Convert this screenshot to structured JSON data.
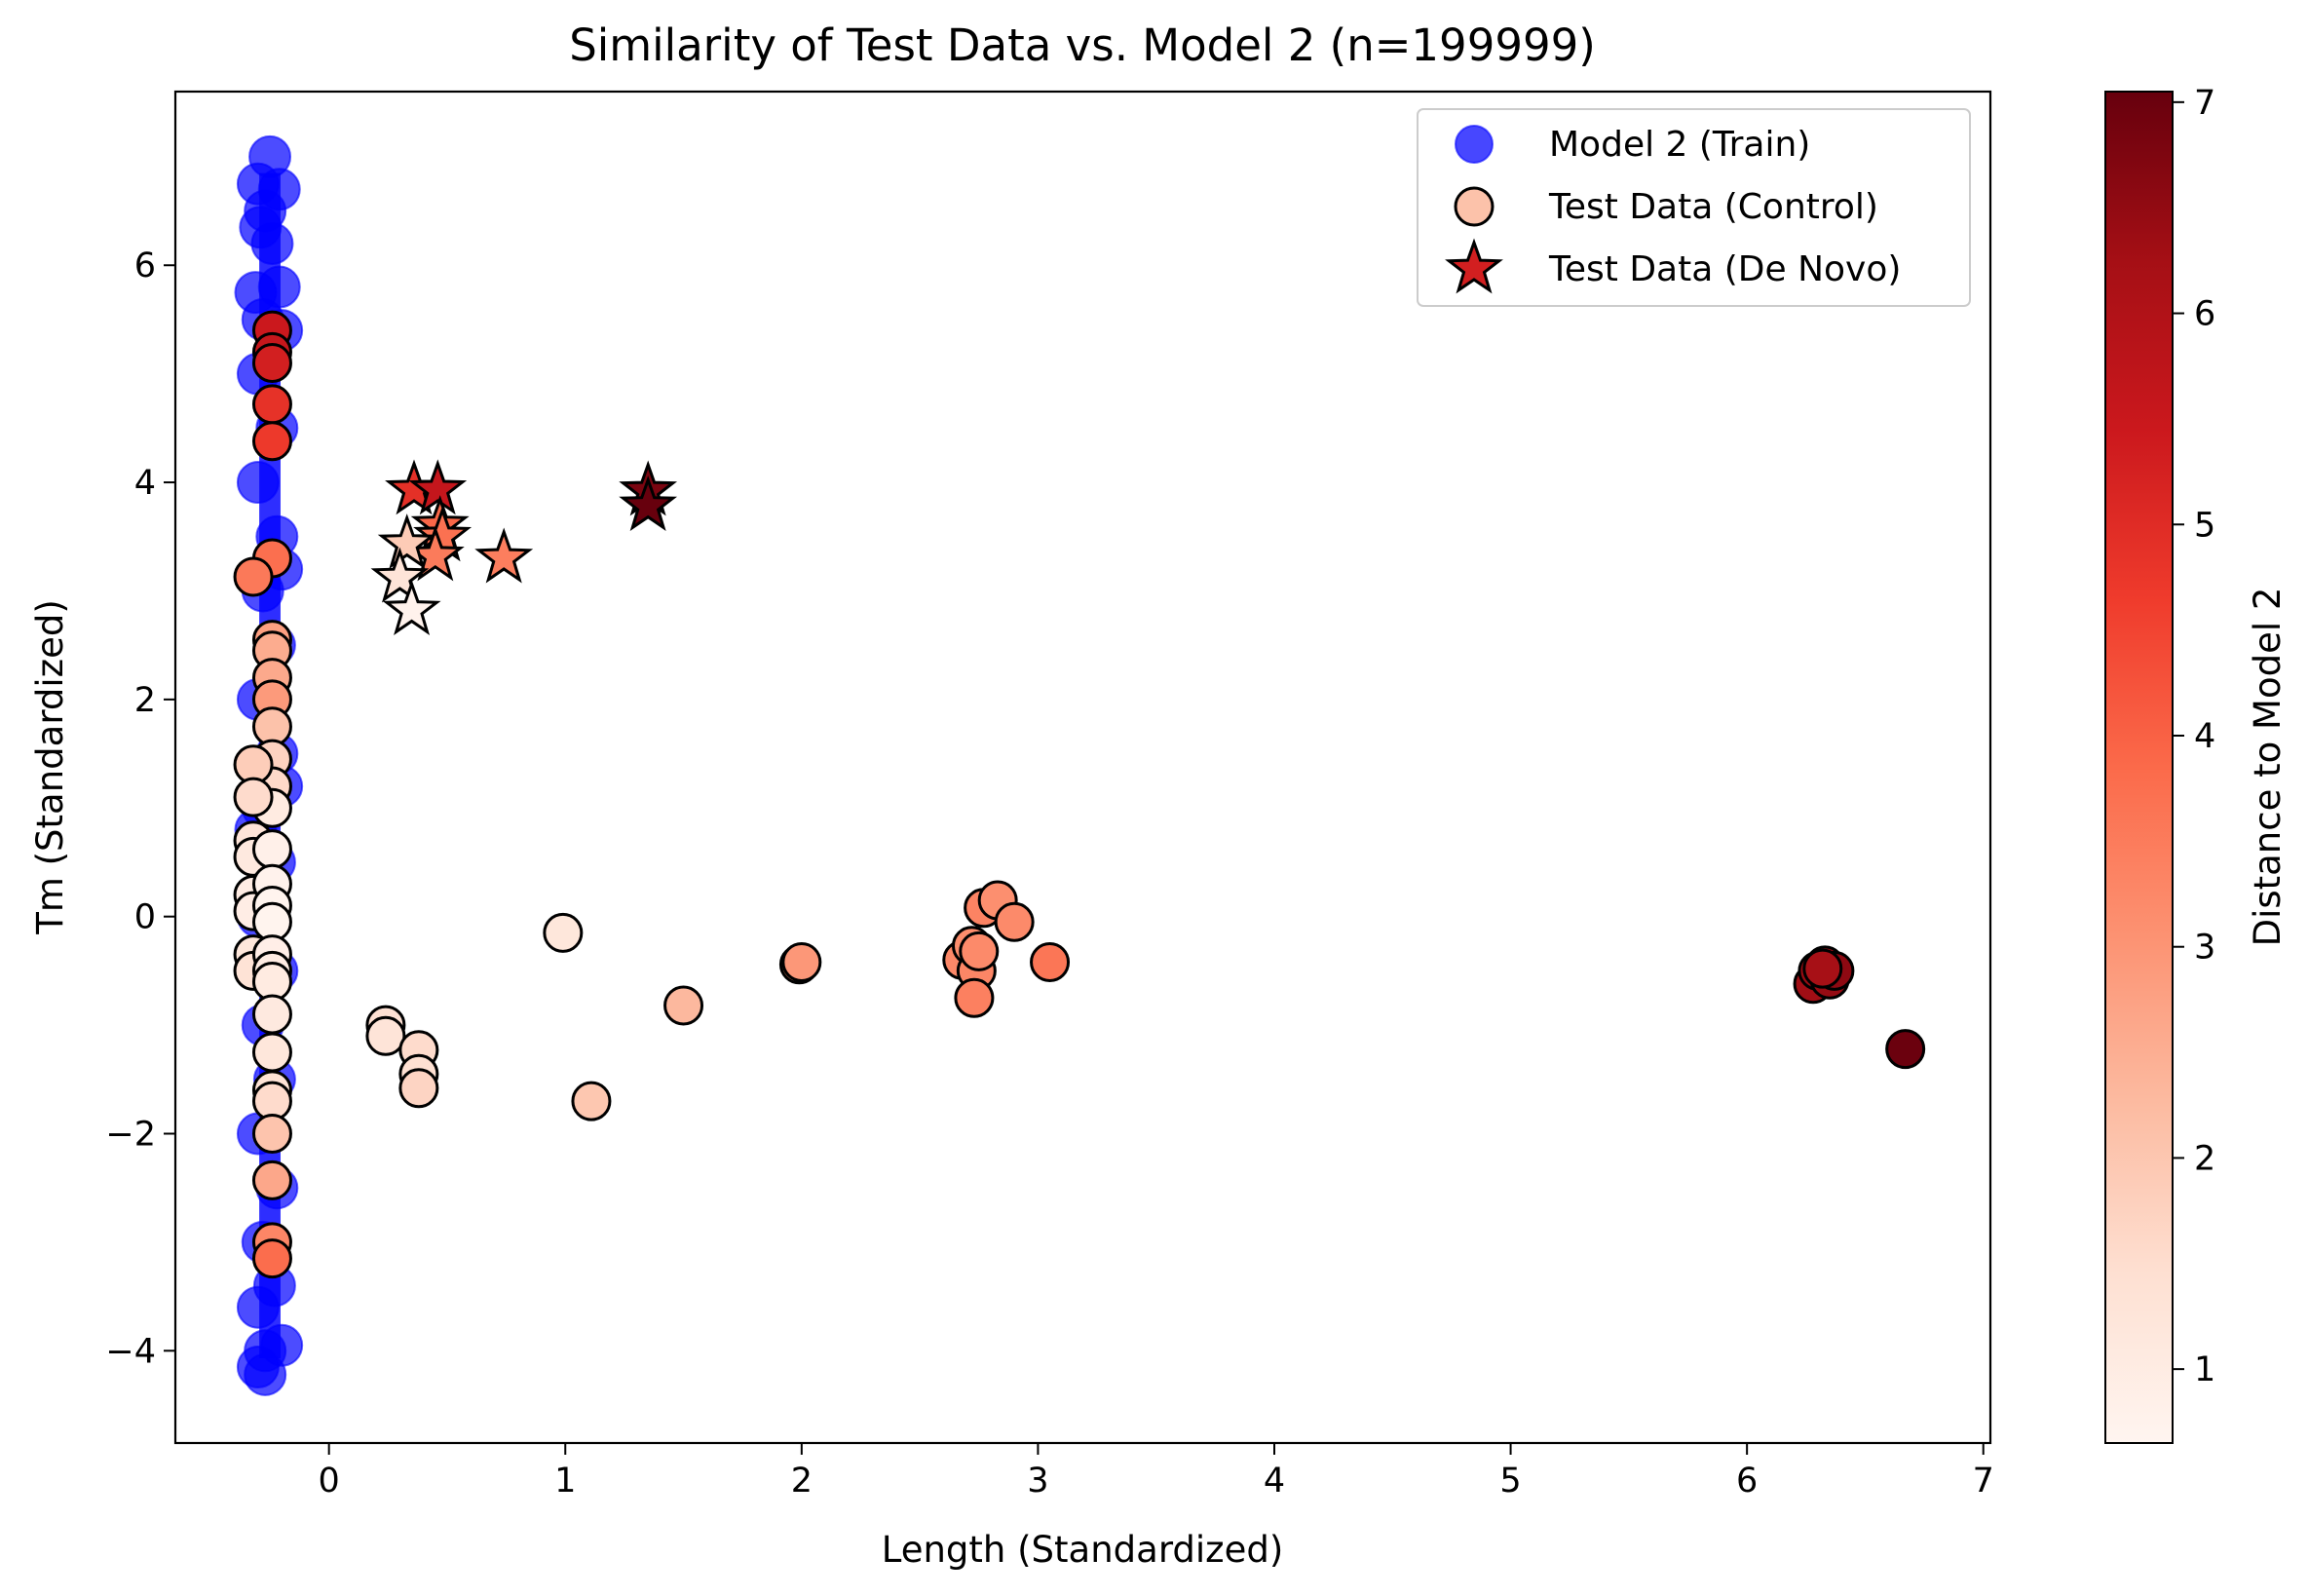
{
  "chart_data": {
    "type": "scatter",
    "title": "Similarity of Test Data vs. Model 2 (n=199999)",
    "xlabel": "Length (Standardized)",
    "ylabel": "Tm (Standardized)",
    "xlim": [
      -0.65,
      7.03
    ],
    "ylim": [
      -4.85,
      7.6
    ],
    "xticks": [
      0,
      1,
      2,
      3,
      4,
      5,
      6,
      7
    ],
    "yticks": [
      -4,
      -2,
      0,
      2,
      4,
      6
    ],
    "xtick_labels": [
      "0",
      "1",
      "2",
      "3",
      "4",
      "5",
      "6",
      "7"
    ],
    "ytick_labels": [
      "−4",
      "−2",
      "0",
      "2",
      "4",
      "6"
    ],
    "grid": false,
    "legend_position": "top-right",
    "colorbar": {
      "label": "Distance to Model 2",
      "range": [
        0.65,
        7.05
      ],
      "ticks": [
        1,
        2,
        3,
        4,
        5,
        6,
        7
      ],
      "tick_labels": [
        "1",
        "2",
        "3",
        "4",
        "5",
        "6",
        "7"
      ],
      "colormap": "Reds",
      "colormap_stops": [
        "#fff5f0",
        "#fee0d2",
        "#fcbba1",
        "#fc9272",
        "#fb6a4a",
        "#ef3b2c",
        "#cb181d",
        "#a50f15",
        "#67000d"
      ]
    },
    "series": [
      {
        "name": "Model 2 (Train)",
        "marker": "circle",
        "color": "#0000ff",
        "legend_color": "#4747ff",
        "opacity": 0.7,
        "points": [
          [
            -0.25,
            7.0
          ],
          [
            -0.21,
            6.7
          ],
          [
            -0.3,
            6.75
          ],
          [
            -0.27,
            6.5
          ],
          [
            -0.29,
            6.35
          ],
          [
            -0.24,
            6.2
          ],
          [
            -0.31,
            5.75
          ],
          [
            -0.21,
            5.8
          ],
          [
            -0.28,
            5.5
          ],
          [
            -0.3,
            5.0
          ],
          [
            -0.22,
            4.5
          ],
          [
            -0.3,
            4.0
          ],
          [
            -0.22,
            3.5
          ],
          [
            -0.28,
            3.0
          ],
          [
            -0.23,
            2.5
          ],
          [
            -0.3,
            2.0
          ],
          [
            -0.22,
            1.5
          ],
          [
            -0.28,
            1.0
          ],
          [
            -0.23,
            0.5
          ],
          [
            -0.3,
            0.0
          ],
          [
            -0.22,
            -0.5
          ],
          [
            -0.28,
            -1.0
          ],
          [
            -0.23,
            -1.5
          ],
          [
            -0.3,
            -2.0
          ],
          [
            -0.22,
            -2.5
          ],
          [
            -0.28,
            -3.0
          ],
          [
            -0.23,
            -3.4
          ],
          [
            -0.3,
            -3.6
          ],
          [
            -0.2,
            -3.95
          ],
          [
            -0.27,
            -4.0
          ],
          [
            -0.3,
            -4.15
          ],
          [
            -0.27,
            -4.22
          ],
          [
            -0.31,
            0.8
          ],
          [
            -0.2,
            3.2
          ],
          [
            -0.2,
            5.4
          ],
          [
            -0.2,
            1.2
          ]
        ]
      },
      {
        "name": "Test Data (Control)",
        "marker": "circle",
        "points": [
          {
            "x": -0.24,
            "y": 5.4,
            "c": 5.45
          },
          {
            "x": -0.24,
            "y": 5.2,
            "c": 5.55
          },
          {
            "x": -0.24,
            "y": 5.1,
            "c": 5.3
          },
          {
            "x": -0.24,
            "y": 4.72,
            "c": 4.85
          },
          {
            "x": -0.24,
            "y": 4.38,
            "c": 4.7
          },
          {
            "x": -0.24,
            "y": 3.3,
            "c": 3.75
          },
          {
            "x": -0.32,
            "y": 3.13,
            "c": 3.55
          },
          {
            "x": -0.24,
            "y": 2.55,
            "c": 2.8
          },
          {
            "x": -0.24,
            "y": 2.45,
            "c": 2.55
          },
          {
            "x": -0.24,
            "y": 2.2,
            "c": 2.6
          },
          {
            "x": -0.24,
            "y": 2.0,
            "c": 2.9
          },
          {
            "x": -0.24,
            "y": 1.75,
            "c": 2.1
          },
          {
            "x": -0.24,
            "y": 1.45,
            "c": 1.75
          },
          {
            "x": -0.24,
            "y": 1.2,
            "c": 1.6
          },
          {
            "x": -0.24,
            "y": 1.0,
            "c": 1.05
          },
          {
            "x": -0.32,
            "y": 1.4,
            "c": 1.85
          },
          {
            "x": -0.32,
            "y": 1.1,
            "c": 1.55
          },
          {
            "x": -0.32,
            "y": 0.7,
            "c": 1.3
          },
          {
            "x": -0.32,
            "y": 0.55,
            "c": 1.1
          },
          {
            "x": -0.32,
            "y": 0.2,
            "c": 1.0
          },
          {
            "x": -0.32,
            "y": 0.05,
            "c": 0.95
          },
          {
            "x": -0.32,
            "y": -0.35,
            "c": 1.2
          },
          {
            "x": -0.32,
            "y": -0.5,
            "c": 1.35
          },
          {
            "x": -0.24,
            "y": 0.62,
            "c": 0.85
          },
          {
            "x": -0.24,
            "y": 0.3,
            "c": 0.75
          },
          {
            "x": -0.24,
            "y": 0.1,
            "c": 0.7
          },
          {
            "x": -0.24,
            "y": -0.05,
            "c": 0.7
          },
          {
            "x": -0.24,
            "y": -0.35,
            "c": 0.9
          },
          {
            "x": -0.24,
            "y": -0.5,
            "c": 1.0
          },
          {
            "x": -0.24,
            "y": -0.6,
            "c": 1.05
          },
          {
            "x": -0.24,
            "y": -0.9,
            "c": 1.1
          },
          {
            "x": -0.24,
            "y": -1.25,
            "c": 1.2
          },
          {
            "x": -0.24,
            "y": -1.6,
            "c": 1.35
          },
          {
            "x": -0.24,
            "y": -1.7,
            "c": 1.55
          },
          {
            "x": -0.24,
            "y": -2.0,
            "c": 2.05
          },
          {
            "x": -0.24,
            "y": -2.43,
            "c": 2.65
          },
          {
            "x": -0.24,
            "y": -3.0,
            "c": 3.3
          },
          {
            "x": -0.24,
            "y": -3.15,
            "c": 3.8
          },
          {
            "x": 0.24,
            "y": -1.0,
            "c": 1.4
          },
          {
            "x": 0.24,
            "y": -1.1,
            "c": 1.3
          },
          {
            "x": 0.38,
            "y": -1.23,
            "c": 1.55
          },
          {
            "x": 0.38,
            "y": -1.45,
            "c": 1.45
          },
          {
            "x": 0.38,
            "y": -1.58,
            "c": 1.7
          },
          {
            "x": 0.99,
            "y": -0.15,
            "c": 1.2
          },
          {
            "x": 1.11,
            "y": -1.7,
            "c": 2.0
          },
          {
            "x": 1.5,
            "y": -0.82,
            "c": 2.3
          },
          {
            "x": 1.99,
            "y": -0.44,
            "c": 3.05
          },
          {
            "x": 2.0,
            "y": -0.42,
            "c": 2.95
          },
          {
            "x": 2.68,
            "y": -0.4,
            "c": 3.25
          },
          {
            "x": 2.72,
            "y": -0.27,
            "c": 3.15
          },
          {
            "x": 2.74,
            "y": -0.5,
            "c": 3.3
          },
          {
            "x": 2.73,
            "y": -0.75,
            "c": 3.4
          },
          {
            "x": 2.75,
            "y": -0.32,
            "c": 3.2
          },
          {
            "x": 2.77,
            "y": 0.08,
            "c": 3.35
          },
          {
            "x": 2.83,
            "y": 0.15,
            "c": 3.1
          },
          {
            "x": 2.9,
            "y": -0.05,
            "c": 3.2
          },
          {
            "x": 3.05,
            "y": -0.42,
            "c": 3.6
          },
          {
            "x": 6.28,
            "y": -0.62,
            "c": 6.3
          },
          {
            "x": 6.3,
            "y": -0.5,
            "c": 6.4
          },
          {
            "x": 6.33,
            "y": -0.45,
            "c": 6.5
          },
          {
            "x": 6.35,
            "y": -0.58,
            "c": 6.45
          },
          {
            "x": 6.37,
            "y": -0.5,
            "c": 6.55
          },
          {
            "x": 6.32,
            "y": -0.48,
            "c": 6.2
          },
          {
            "x": 6.67,
            "y": -1.22,
            "c": 7.0
          }
        ]
      },
      {
        "name": "Test Data (De Novo)",
        "marker": "star",
        "points": [
          {
            "x": 0.36,
            "y": 3.93,
            "c": 4.9
          },
          {
            "x": 0.46,
            "y": 3.93,
            "c": 5.6
          },
          {
            "x": 0.47,
            "y": 3.6,
            "c": 3.9
          },
          {
            "x": 0.48,
            "y": 3.5,
            "c": 3.7
          },
          {
            "x": 0.45,
            "y": 3.32,
            "c": 3.5
          },
          {
            "x": 0.33,
            "y": 3.43,
            "c": 1.9
          },
          {
            "x": 0.3,
            "y": 3.12,
            "c": 1.3
          },
          {
            "x": 0.35,
            "y": 2.82,
            "c": 0.75
          },
          {
            "x": 0.74,
            "y": 3.3,
            "c": 3.45
          },
          {
            "x": 1.35,
            "y": 3.92,
            "c": 6.8
          },
          {
            "x": 1.35,
            "y": 3.78,
            "c": 7.05
          }
        ]
      }
    ]
  }
}
